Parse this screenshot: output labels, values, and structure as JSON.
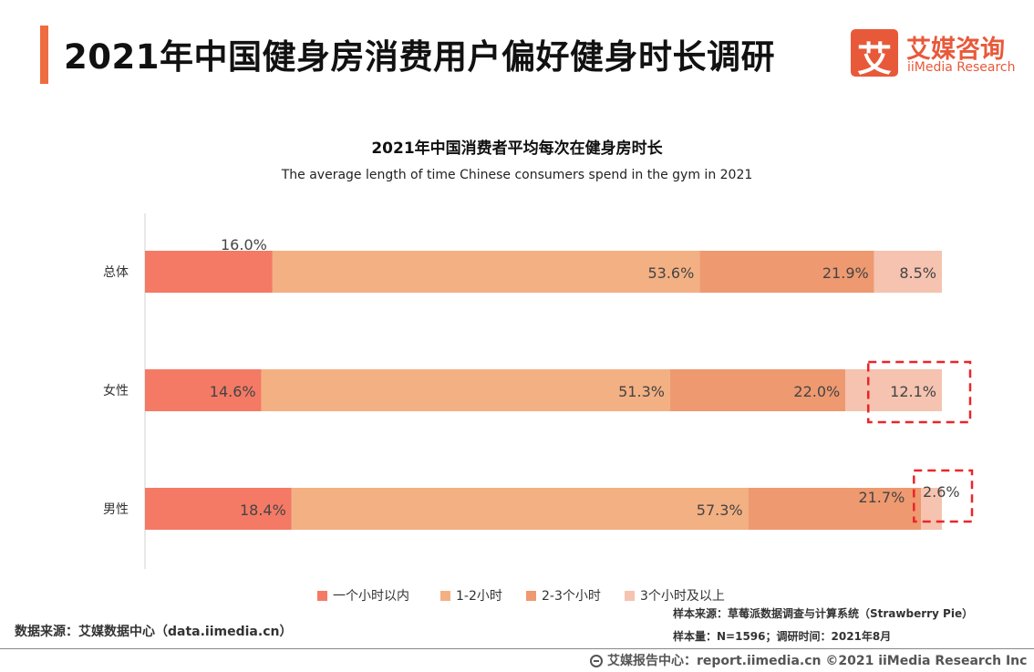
{
  "header": {
    "title": "2021年中国健身房消费用户偏好健身时长调研",
    "logo_glyph": "艾",
    "logo_cn": "艾媒咨询",
    "logo_en": "iiMedia Research"
  },
  "chart_data": {
    "type": "bar",
    "orientation": "horizontal",
    "stacked": true,
    "percent": true,
    "title": "2021年中国消费者平均每次在健身房时长",
    "subtitle": "The average length of time Chinese consumers spend in the gym in 2021",
    "categories": [
      "总体",
      "女性",
      "男性"
    ],
    "series": [
      {
        "name": "一个小时以内",
        "color": "#f47a65",
        "values": [
          16.0,
          14.6,
          18.4
        ]
      },
      {
        "name": "1-2小时",
        "color": "#f3b083",
        "values": [
          53.6,
          51.3,
          57.3
        ]
      },
      {
        "name": "2-3个小时",
        "color": "#ee9970",
        "values": [
          21.9,
          22.0,
          21.7
        ]
      },
      {
        "name": "3个小时及以上",
        "color": "#f5c3b0",
        "values": [
          8.5,
          12.1,
          2.6
        ]
      }
    ],
    "highlighted": [
      {
        "category": "女性",
        "series": "3个小时及以上"
      },
      {
        "category": "男性",
        "series": "3个小时及以上"
      }
    ],
    "legend_position": "bottom",
    "grid": false,
    "xlim": [
      0,
      100
    ]
  },
  "footer": {
    "source": "数据来源：艾媒数据中心（data.iimedia.cn）",
    "sample_source": "样本来源：草莓派数据调查与计算系统（Strawberry Pie）",
    "sample_size": "样本量：N=1596；调研时间：2021年8月",
    "copyright": "艾媒报告中心：report.iimedia.cn   ©2021  iiMedia Research  Inc"
  },
  "colors": {
    "accent": "#ee6c3f",
    "brand": "#e8593a",
    "highlight_border": "#e8262a"
  }
}
